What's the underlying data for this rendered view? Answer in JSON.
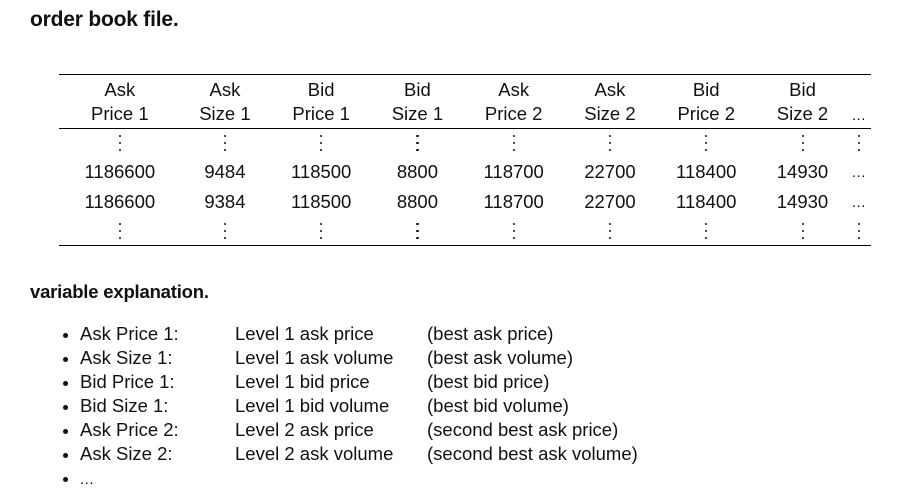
{
  "headings": {
    "order_book": "order book file.",
    "variables": "variable explanation."
  },
  "table": {
    "columns": [
      {
        "line1": "Ask",
        "line2": "Price 1"
      },
      {
        "line1": "Ask",
        "line2": "Size 1"
      },
      {
        "line1": "Bid",
        "line2": "Price 1"
      },
      {
        "line1": "Bid",
        "line2": "Size 1"
      },
      {
        "line1": "Ask",
        "line2": "Price 2"
      },
      {
        "line1": "Ask",
        "line2": "Size 2"
      },
      {
        "line1": "Bid",
        "line2": "Price 2"
      },
      {
        "line1": "Bid",
        "line2": "Size 2"
      }
    ],
    "ellipsis": "...",
    "rows": [
      [
        "1186600",
        "9484",
        "118500",
        "8800",
        "118700",
        "22700",
        "118400",
        "14930"
      ],
      [
        "1186600",
        "9384",
        "118500",
        "8800",
        "118700",
        "22700",
        "118400",
        "14930"
      ]
    ]
  },
  "variables": [
    {
      "name": "Ask Price 1:",
      "desc": "Level 1 ask price",
      "note": "(best ask price)"
    },
    {
      "name": "Ask Size 1:",
      "desc": "Level 1 ask volume",
      "note": "(best ask volume)"
    },
    {
      "name": "Bid Price 1:",
      "desc": "Level 1 bid price",
      "note": "(best bid price)"
    },
    {
      "name": "Bid Size 1:",
      "desc": "Level 1 bid volume",
      "note": "(best bid volume)"
    },
    {
      "name": "Ask Price 2:",
      "desc": "Level 2 ask price",
      "note": "(second best ask price)"
    },
    {
      "name": "Ask Size 2:",
      "desc": "Level 2 ask volume",
      "note": "(second best ask volume)"
    }
  ],
  "variables_more": "..."
}
